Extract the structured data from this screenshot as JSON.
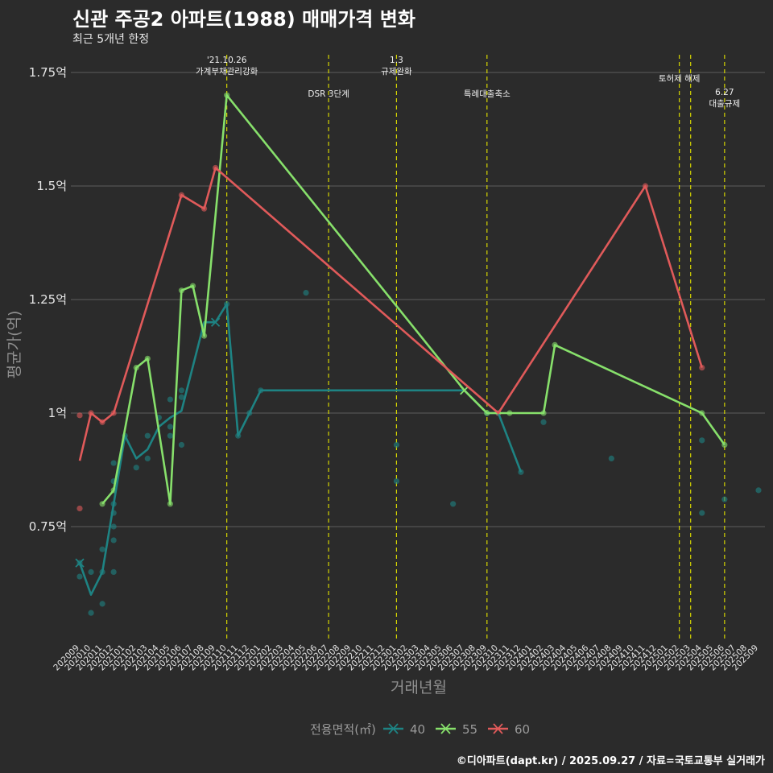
{
  "title": "신관 주공2 아파트(1988) 매매가격 변화",
  "subtitle": "최근 5개년 한정",
  "caption": "©디아파트(dapt.kr) / 2025.09.27 / 자료=국토교통부 실거래가",
  "colors": {
    "background": "#2b2b2b",
    "grid": "#5c5c5c",
    "vline": "#d6d600",
    "s40": "#1e8383",
    "s55": "#87e06b",
    "s60": "#e05a5a"
  },
  "chart_data": {
    "type": "line",
    "xlabel": "거래년월",
    "ylabel": "평균가(억)",
    "y_ticks": [
      {
        "v": 0.75,
        "label": "0.75억"
      },
      {
        "v": 1.0,
        "label": "1억"
      },
      {
        "v": 1.25,
        "label": "1.25억"
      },
      {
        "v": 1.5,
        "label": "1.5억"
      },
      {
        "v": 1.75,
        "label": "1.75억"
      }
    ],
    "ylim": [
      0.5,
      1.77
    ],
    "categories": [
      "202009",
      "202010",
      "202011",
      "202012",
      "202101",
      "202102",
      "202103",
      "202104",
      "202105",
      "202106",
      "202107",
      "202108",
      "202109",
      "202110",
      "202111",
      "202112",
      "202201",
      "202202",
      "202203",
      "202204",
      "202205",
      "202206",
      "202207",
      "202208",
      "202209",
      "202210",
      "202211",
      "202212",
      "202301",
      "202302",
      "202303",
      "202304",
      "202305",
      "202306",
      "202307",
      "202308",
      "202309",
      "202310",
      "202311",
      "202312",
      "202401",
      "202402",
      "202403",
      "202404",
      "202405",
      "202406",
      "202407",
      "202408",
      "202409",
      "202410",
      "202411",
      "202412",
      "202501",
      "202502",
      "202503",
      "202504",
      "202505",
      "202506",
      "202507",
      "202508",
      "202509"
    ],
    "legend_title": "전용면적(㎡)",
    "series": [
      {
        "name": "40",
        "line": [
          [
            0,
            0.67
          ],
          [
            1,
            0.6
          ],
          [
            2,
            0.65
          ],
          [
            3,
            0.8
          ],
          [
            4,
            0.95
          ],
          [
            5,
            0.9
          ],
          [
            6,
            0.92
          ],
          [
            7,
            0.97
          ],
          [
            8,
            0.99
          ],
          [
            9,
            1.005
          ],
          [
            11,
            1.2
          ],
          [
            12,
            1.2
          ],
          [
            13,
            1.24
          ],
          [
            14,
            0.95
          ],
          [
            15,
            1.0
          ],
          [
            16,
            1.05
          ],
          [
            34,
            1.05
          ],
          [
            36,
            1.0
          ],
          [
            37,
            1.0
          ],
          [
            39,
            0.87
          ]
        ],
        "points": [
          [
            0,
            0.67
          ],
          [
            0,
            0.64
          ],
          [
            1,
            0.65
          ],
          [
            1,
            0.56
          ],
          [
            2,
            0.7
          ],
          [
            2,
            0.65
          ],
          [
            2,
            0.58
          ],
          [
            3,
            0.89
          ],
          [
            3,
            0.85
          ],
          [
            3,
            0.8
          ],
          [
            3,
            0.78
          ],
          [
            3,
            0.75
          ],
          [
            3,
            0.72
          ],
          [
            3,
            0.65
          ],
          [
            4,
            0.95
          ],
          [
            5,
            0.88
          ],
          [
            6,
            0.9
          ],
          [
            6,
            0.95
          ],
          [
            7,
            0.99
          ],
          [
            8,
            1.03
          ],
          [
            8,
            0.97
          ],
          [
            8,
            0.95
          ],
          [
            9,
            1.05
          ],
          [
            9,
            1.035
          ],
          [
            9,
            0.93
          ],
          [
            13,
            1.24
          ],
          [
            14,
            0.95
          ],
          [
            15,
            1.0
          ],
          [
            16,
            1.05
          ],
          [
            20,
            1.265
          ],
          [
            28,
            0.93
          ],
          [
            28,
            0.85
          ],
          [
            33,
            0.8
          ],
          [
            36,
            1.0
          ],
          [
            37,
            1.0
          ],
          [
            39,
            0.87
          ],
          [
            41,
            0.98
          ],
          [
            47,
            0.9
          ],
          [
            55,
            0.94
          ],
          [
            55,
            0.78
          ],
          [
            57,
            0.81
          ],
          [
            60,
            0.83
          ]
        ],
        "markers": [
          0,
          12,
          34
        ]
      },
      {
        "name": "55",
        "line": [
          [
            2,
            0.8
          ],
          [
            3,
            0.83
          ],
          [
            5,
            1.1
          ],
          [
            6,
            1.12
          ],
          [
            8,
            0.8
          ],
          [
            9,
            1.27
          ],
          [
            10,
            1.28
          ],
          [
            11,
            1.17
          ],
          [
            13,
            1.7
          ],
          [
            34,
            1.05
          ],
          [
            36,
            1.0
          ],
          [
            38,
            1.0
          ],
          [
            41,
            1.0
          ],
          [
            42,
            1.15
          ],
          [
            55,
            1.0
          ],
          [
            57,
            0.93
          ]
        ],
        "points": [
          [
            2,
            0.8
          ],
          [
            3,
            0.83
          ],
          [
            5,
            1.1
          ],
          [
            6,
            1.12
          ],
          [
            8,
            0.8
          ],
          [
            9,
            1.27
          ],
          [
            10,
            1.28
          ],
          [
            11,
            1.17
          ],
          [
            13,
            1.7
          ],
          [
            36,
            1.0
          ],
          [
            38,
            1.0
          ],
          [
            41,
            1.0
          ],
          [
            42,
            1.15
          ],
          [
            55,
            1.0
          ],
          [
            57,
            0.93
          ]
        ],
        "markers": [
          34
        ]
      },
      {
        "name": "60",
        "line": [
          [
            0,
            0.895
          ],
          [
            1,
            1.0
          ],
          [
            2,
            0.98
          ],
          [
            3,
            1.0
          ],
          [
            9,
            1.48
          ],
          [
            11,
            1.45
          ],
          [
            12,
            1.54
          ],
          [
            37,
            1.0
          ],
          [
            50,
            1.5
          ],
          [
            55,
            1.1
          ]
        ],
        "points": [
          [
            0,
            0.995
          ],
          [
            0,
            0.79
          ],
          [
            1,
            1.0
          ],
          [
            2,
            0.98
          ],
          [
            3,
            1.0
          ],
          [
            9,
            1.48
          ],
          [
            11,
            1.45
          ],
          [
            12,
            1.54
          ],
          [
            37,
            1.0
          ],
          [
            50,
            1.5
          ],
          [
            55,
            1.1
          ]
        ],
        "markers": []
      }
    ],
    "events": [
      {
        "x": 13,
        "label": [
          "'21.10.26",
          "가계부채관리강화"
        ],
        "row": 0
      },
      {
        "x": 22,
        "label": [
          "DSR 3단계"
        ],
        "row": 1
      },
      {
        "x": 28,
        "label": [
          "1.3",
          "규제완화"
        ],
        "row": 0
      },
      {
        "x": 36,
        "label": [
          "특례대출축소"
        ],
        "row": 1
      },
      {
        "x": 53,
        "label": [
          "토허제 해제"
        ],
        "row": 2
      },
      {
        "x": 54,
        "label": [],
        "row": 2
      },
      {
        "x": 57,
        "label": [
          "6.27",
          "대출규제"
        ],
        "row": 3
      }
    ]
  }
}
